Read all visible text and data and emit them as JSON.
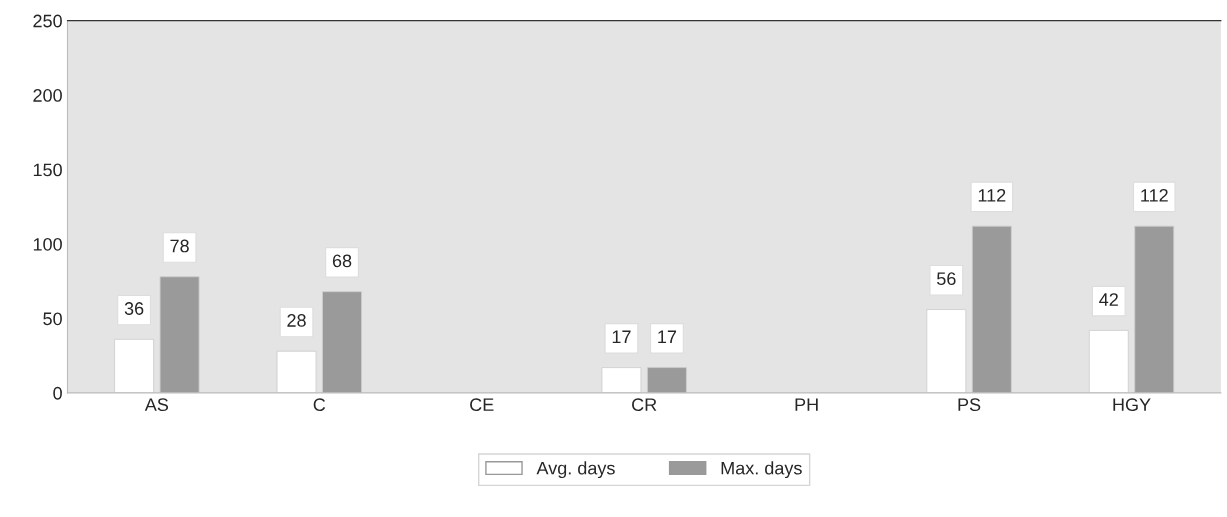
{
  "chart_data": {
    "type": "bar",
    "categories": [
      "AS",
      "C",
      "CE",
      "CR",
      "PH",
      "PS",
      "HGY"
    ],
    "series": [
      {
        "name": "Avg. days",
        "color": "#ffffff",
        "values": [
          36,
          28,
          null,
          17,
          null,
          56,
          42
        ]
      },
      {
        "name": "Max. days",
        "color": "#9a9a9a",
        "values": [
          78,
          68,
          null,
          17,
          null,
          112,
          112
        ]
      }
    ],
    "ylim": [
      0,
      250
    ],
    "yticks": [
      0,
      50,
      100,
      150,
      200,
      250
    ],
    "grid": false,
    "legend": "bottom",
    "data_labels": true
  }
}
